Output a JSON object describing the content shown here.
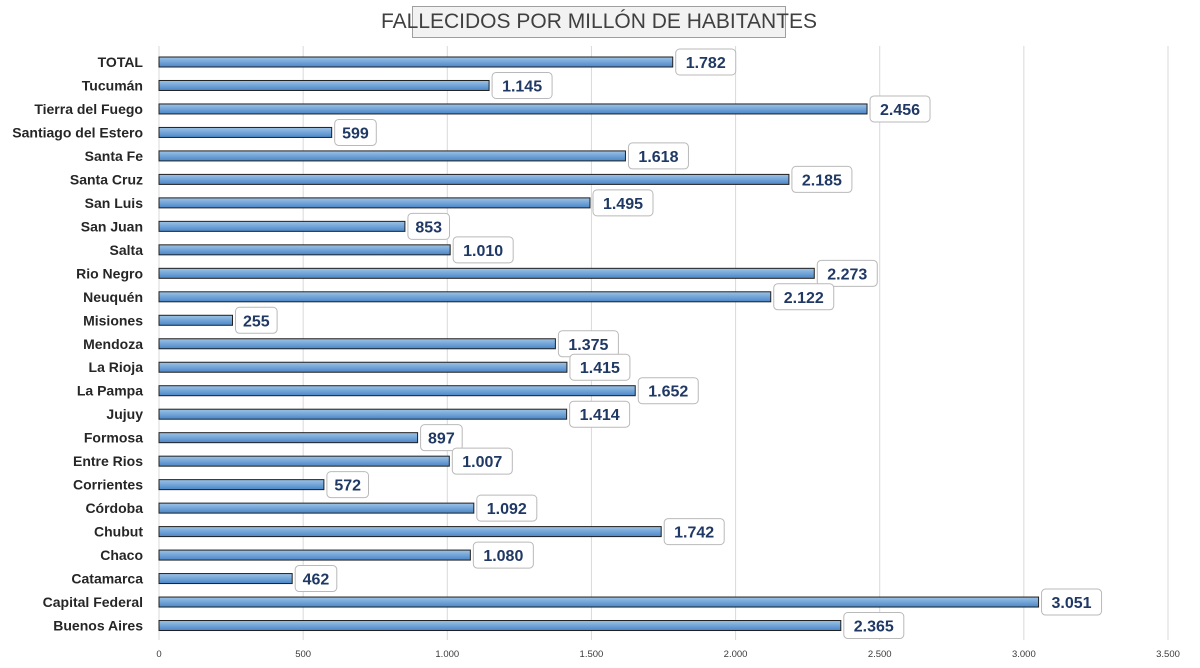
{
  "colors": {
    "bar_fill_top": "#9dc3e6",
    "bar_fill_bottom": "#4a86c8",
    "label_text": "#1f3864"
  },
  "chart_data": {
    "type": "bar",
    "orientation": "horizontal",
    "title": "FALLECIDOS POR MILLÓN DE HABITANTES",
    "xlabel": "",
    "ylabel": "",
    "xlim": [
      0,
      3500
    ],
    "grid": true,
    "x_ticks": [
      {
        "value": 0,
        "label": "0"
      },
      {
        "value": 500,
        "label": "500"
      },
      {
        "value": 1000,
        "label": "1.000"
      },
      {
        "value": 1500,
        "label": "1.500"
      },
      {
        "value": 2000,
        "label": "2.000"
      },
      {
        "value": 2500,
        "label": "2.500"
      },
      {
        "value": 3000,
        "label": "3.000"
      },
      {
        "value": 3500,
        "label": "3.500"
      }
    ],
    "categories": [
      "TOTAL",
      "Tucumán",
      "Tierra del Fuego",
      "Santiago del Estero",
      "Santa Fe",
      "Santa Cruz",
      "San Luis",
      "San Juan",
      "Salta",
      "Rio Negro",
      "Neuquén",
      "Misiones",
      "Mendoza",
      "La Rioja",
      "La Pampa",
      "Jujuy",
      "Formosa",
      "Entre Rios",
      "Corrientes",
      "Córdoba",
      "Chubut",
      "Chaco",
      "Catamarca",
      "Capital Federal",
      "Buenos Aires"
    ],
    "values": [
      1782,
      1145,
      2456,
      599,
      1618,
      2185,
      1495,
      853,
      1010,
      2273,
      2122,
      255,
      1375,
      1415,
      1652,
      1414,
      897,
      1007,
      572,
      1092,
      1742,
      1080,
      462,
      3051,
      2365
    ],
    "value_labels": [
      "1.782",
      "1.145",
      "2.456",
      "599",
      "1.618",
      "2.185",
      "1.495",
      "853",
      "1.010",
      "2.273",
      "2.122",
      "255",
      "1.375",
      "1.415",
      "1.652",
      "1.414",
      "897",
      "1.007",
      "572",
      "1.092",
      "1.742",
      "1.080",
      "462",
      "3.051",
      "2.365"
    ]
  }
}
